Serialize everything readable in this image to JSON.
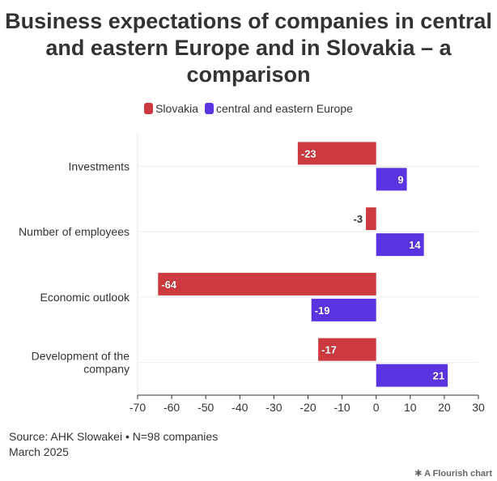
{
  "title": "Business expectations of companies in central and eastern Europe and in Slovakia – a comparison",
  "legend": [
    {
      "name": "Slovakia",
      "color": "#cc3a3f"
    },
    {
      "name": "central and eastern Europe",
      "color": "#5a34e0"
    }
  ],
  "chart_data": {
    "type": "bar",
    "orientation": "horizontal",
    "categories": [
      "Investments",
      "Number of employees",
      "Economic outlook",
      "Development of the company"
    ],
    "series": [
      {
        "name": "Slovakia",
        "color": "#cc3a3f",
        "values": [
          -23,
          -3,
          -64,
          -17
        ]
      },
      {
        "name": "central and eastern Europe",
        "color": "#5a34e0",
        "values": [
          9,
          14,
          -19,
          21
        ]
      }
    ],
    "xlim": [
      -70,
      30
    ],
    "xticks": [
      -70,
      -60,
      -50,
      -40,
      -30,
      -20,
      -10,
      0,
      10,
      20,
      30
    ],
    "data_labels": true,
    "grid": true,
    "legend_position": "top-center"
  },
  "footer": {
    "source": "Source: AHK Slowakei • N=98 companies",
    "date": "March 2025",
    "credit": "A Flourish chart"
  }
}
